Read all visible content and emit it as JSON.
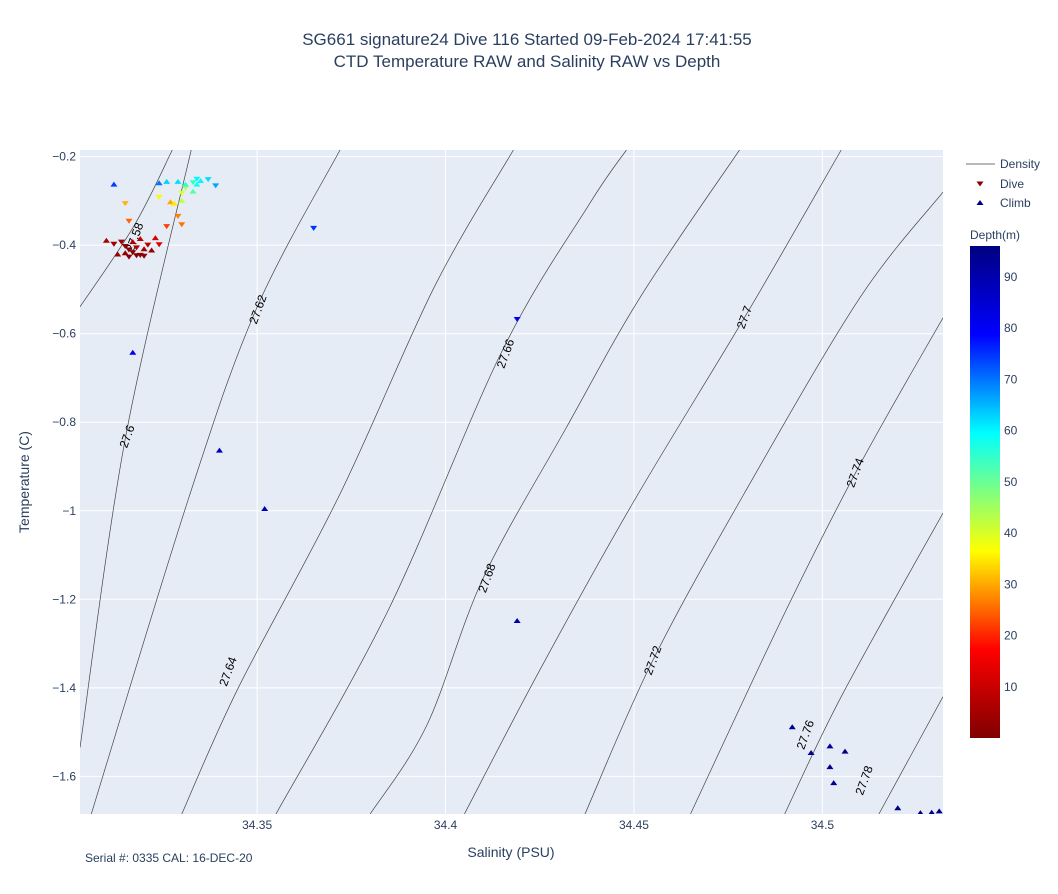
{
  "title_line1": "SG661 signature24 Dive 116 Started 09-Feb-2024 17:41:55",
  "title_line2": "CTD Temperature RAW and Salinity RAW vs Depth",
  "footnote": "Serial #: 0335  CAL: 16-DEC-20",
  "chart_data": {
    "type": "scatter",
    "xlabel": "Salinity (PSU)",
    "ylabel": "Temperature (C)",
    "xlim": [
      34.303,
      34.532
    ],
    "ylim": [
      -1.685,
      -0.185
    ],
    "x_ticks": [
      34.35,
      34.4,
      34.45,
      34.5
    ],
    "x_tick_labels": [
      "34.35",
      "34.4",
      "34.45",
      "34.5"
    ],
    "y_ticks": [
      -0.2,
      -0.4,
      -0.6,
      -0.8,
      -1.0,
      -1.2,
      -1.4,
      -1.6
    ],
    "y_tick_labels": [
      "−0.2",
      "−0.4",
      "−0.6",
      "−0.8",
      "−1",
      "−1.2",
      "−1.4",
      "−1.6"
    ],
    "grid": true,
    "legend_placement": "right",
    "legend_items": [
      "Density",
      "Dive",
      "Climb"
    ],
    "colorbar": {
      "title": "Depth(m)",
      "range": [
        0,
        96
      ],
      "ticks": [
        10,
        20,
        30,
        40,
        50,
        60,
        70,
        80,
        90
      ],
      "tick_labels": [
        "10",
        "20",
        "30",
        "40",
        "50",
        "60",
        "70",
        "80",
        "90"
      ],
      "colorscale": [
        "#800000",
        "#ff0000",
        "#ffff00",
        "#00ffff",
        "#0000ff",
        "#000080"
      ]
    },
    "density_contours": [
      {
        "label": "27.58",
        "points": [
          [
            34.3,
            -0.576
          ],
          [
            34.317,
            -0.361
          ],
          [
            34.3275,
            -0.185
          ]
        ]
      },
      {
        "label": "27.6",
        "points": [
          [
            34.303,
            -1.535
          ],
          [
            34.315,
            -0.838
          ],
          [
            34.3325,
            -0.185
          ]
        ]
      },
      {
        "label": "27.62",
        "points": [
          [
            34.306,
            -1.685
          ],
          [
            34.332,
            -0.967
          ],
          [
            34.35,
            -0.54
          ],
          [
            34.372,
            -0.185
          ]
        ]
      },
      {
        "label": "27.64",
        "points": [
          [
            34.33,
            -1.685
          ],
          [
            34.345,
            -1.4
          ],
          [
            34.372,
            -0.962
          ],
          [
            34.397,
            -0.495
          ],
          [
            34.418,
            -0.185
          ]
        ]
      },
      {
        "label": "27.66",
        "points": [
          [
            34.355,
            -1.685
          ],
          [
            34.385,
            -1.221
          ],
          [
            34.415,
            -0.639
          ],
          [
            34.438,
            -0.309
          ],
          [
            34.448,
            -0.185
          ]
        ]
      },
      {
        "label": "27.68",
        "points": [
          [
            34.38,
            -1.685
          ],
          [
            34.395,
            -1.485
          ],
          [
            34.41,
            -1.152
          ],
          [
            34.432,
            -0.813
          ],
          [
            34.452,
            -0.513
          ],
          [
            34.478,
            -0.185
          ]
        ]
      },
      {
        "label": "27.7",
        "points": [
          [
            34.405,
            -1.685
          ],
          [
            34.425,
            -1.36
          ],
          [
            34.45,
            -0.978
          ],
          [
            34.48,
            -0.554
          ],
          [
            34.505,
            -0.185
          ]
        ]
      },
      {
        "label": "27.72",
        "points": [
          [
            34.437,
            -1.685
          ],
          [
            34.455,
            -1.338
          ],
          [
            34.48,
            -0.95
          ],
          [
            34.51,
            -0.518
          ],
          [
            34.532,
            -0.28
          ]
        ]
      },
      {
        "label": "27.74",
        "points": [
          [
            34.465,
            -1.685
          ],
          [
            34.49,
            -1.231
          ],
          [
            34.51,
            -0.895
          ],
          [
            34.532,
            -0.564
          ]
        ]
      },
      {
        "label": "27.76",
        "points": [
          [
            34.49,
            -1.685
          ],
          [
            34.505,
            -1.42
          ],
          [
            34.532,
            -1.005
          ]
        ]
      },
      {
        "label": "27.78",
        "points": [
          [
            34.515,
            -1.685
          ],
          [
            34.532,
            -1.42
          ]
        ]
      }
    ],
    "series": [
      {
        "name": "Dive",
        "marker": "triangle-down",
        "points": [
          [
            34.312,
            -0.398,
            4
          ],
          [
            34.314,
            -0.393,
            5
          ],
          [
            34.315,
            -0.403,
            3
          ],
          [
            34.316,
            -0.411,
            2
          ],
          [
            34.317,
            -0.417,
            2
          ],
          [
            34.318,
            -0.424,
            1
          ],
          [
            34.319,
            -0.423,
            1
          ],
          [
            34.316,
            -0.427,
            2
          ],
          [
            34.32,
            -0.425,
            2
          ],
          [
            34.318,
            -0.406,
            7
          ],
          [
            34.321,
            -0.4,
            8
          ],
          [
            34.324,
            -0.399,
            13
          ],
          [
            34.326,
            -0.358,
            22
          ],
          [
            34.316,
            -0.346,
            25
          ],
          [
            34.315,
            -0.306,
            31
          ],
          [
            34.324,
            -0.292,
            36
          ],
          [
            34.329,
            -0.335,
            27
          ],
          [
            34.33,
            -0.354,
            26
          ],
          [
            34.33,
            -0.283,
            40
          ],
          [
            34.331,
            -0.271,
            44
          ],
          [
            34.333,
            -0.259,
            55
          ],
          [
            34.334,
            -0.251,
            60
          ],
          [
            34.337,
            -0.252,
            62
          ],
          [
            34.339,
            -0.266,
            66
          ],
          [
            34.365,
            -0.362,
            75
          ],
          [
            34.419,
            -0.568,
            80
          ]
        ]
      },
      {
        "name": "Climb",
        "marker": "triangle-up",
        "points": [
          [
            34.31,
            -0.389,
            6
          ],
          [
            34.313,
            -0.42,
            4
          ],
          [
            34.315,
            -0.417,
            3
          ],
          [
            34.317,
            -0.392,
            6
          ],
          [
            34.319,
            -0.385,
            9
          ],
          [
            34.32,
            -0.408,
            5
          ],
          [
            34.322,
            -0.411,
            3
          ],
          [
            34.323,
            -0.383,
            12
          ],
          [
            34.327,
            -0.302,
            30
          ],
          [
            34.328,
            -0.305,
            35
          ],
          [
            34.33,
            -0.299,
            42
          ],
          [
            34.331,
            -0.262,
            56
          ],
          [
            34.333,
            -0.278,
            52
          ],
          [
            34.334,
            -0.262,
            58
          ],
          [
            34.335,
            -0.254,
            60
          ],
          [
            34.326,
            -0.256,
            63
          ],
          [
            34.329,
            -0.256,
            62
          ],
          [
            34.324,
            -0.259,
            70
          ],
          [
            34.312,
            -0.262,
            74
          ],
          [
            34.317,
            -0.642,
            82
          ],
          [
            34.34,
            -0.863,
            88
          ],
          [
            34.352,
            -0.995,
            89
          ],
          [
            34.419,
            -1.248,
            90
          ],
          [
            34.492,
            -1.488,
            93
          ],
          [
            34.497,
            -1.546,
            93
          ],
          [
            34.502,
            -1.531,
            93
          ],
          [
            34.502,
            -1.578,
            94
          ],
          [
            34.503,
            -1.614,
            94
          ],
          [
            34.506,
            -1.543,
            94
          ],
          [
            34.52,
            -1.671,
            95
          ],
          [
            34.526,
            -1.682,
            95
          ],
          [
            34.529,
            -1.681,
            95
          ],
          [
            34.531,
            -1.678,
            95
          ]
        ]
      }
    ]
  }
}
